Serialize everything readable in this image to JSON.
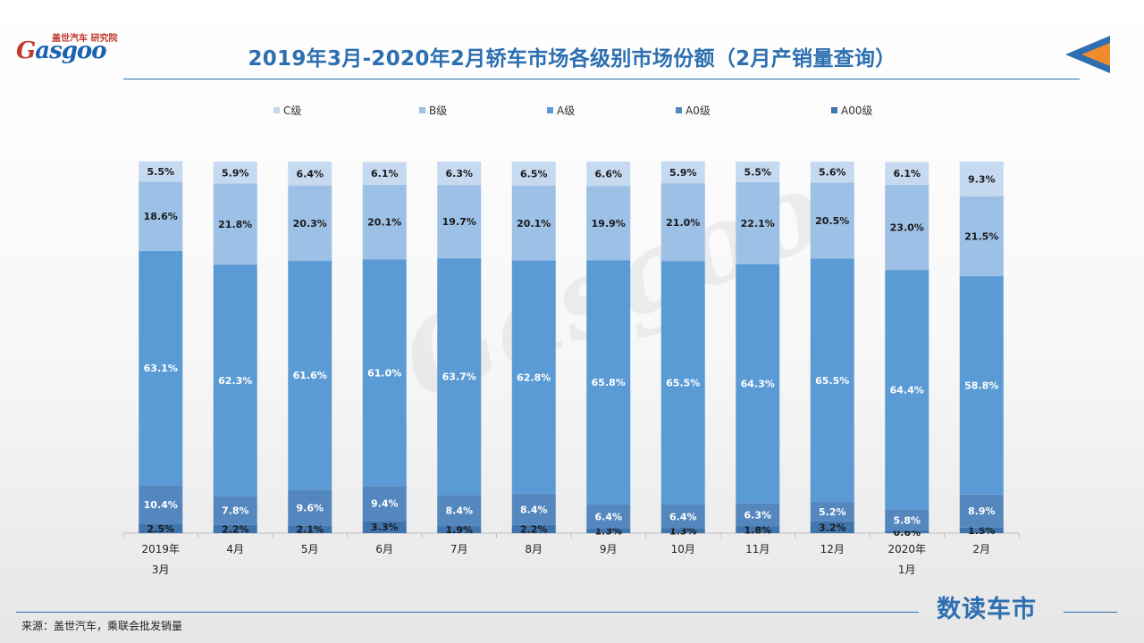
{
  "logo": {
    "top_cn_1": "盖世汽车",
    "top_cn_2": "研究院",
    "g": "G",
    "rest": "asgoo"
  },
  "title": "2019年3月-2020年2月轿车市场各级别市场份额（2月产销量查询）",
  "source": "来源：盖世汽车，乘联会批发销量",
  "brand": "数读车市",
  "watermark": "Gasgoo",
  "colors": {
    "accent": "#2d6fb0",
    "orange": "#f28a2e"
  },
  "chart_data": {
    "type": "bar",
    "stacked": true,
    "percent": true,
    "ylim": [
      0,
      100
    ],
    "legend_position": "top",
    "categories": [
      [
        "2019年",
        "3月"
      ],
      [
        "4月"
      ],
      [
        "5月"
      ],
      [
        "6月"
      ],
      [
        "7月"
      ],
      [
        "8月"
      ],
      [
        "9月"
      ],
      [
        "10月"
      ],
      [
        "11月"
      ],
      [
        "12月"
      ],
      [
        "2020年",
        "1月"
      ],
      [
        "2月"
      ]
    ],
    "series": [
      {
        "name": "A00级",
        "color": "#3f74ad",
        "label_color": "#1a1a1a",
        "values": [
          2.5,
          2.2,
          2.1,
          3.3,
          1.9,
          2.2,
          1.3,
          1.3,
          1.8,
          3.2,
          0.6,
          1.5
        ],
        "labels": [
          "2.5%",
          "2.2%",
          "2.1%",
          "3.3%",
          "1.9%",
          "2.2%",
          "1.3%",
          "1.3%",
          "1.8%",
          "3.2%",
          "0.6%",
          "1.5%"
        ]
      },
      {
        "name": "A0级",
        "color": "#5587bf",
        "label_color": "#ffffff",
        "values": [
          10.4,
          7.8,
          9.6,
          9.4,
          8.4,
          8.4,
          6.4,
          6.4,
          6.3,
          5.2,
          5.8,
          8.9
        ],
        "labels": [
          "10.4%",
          "7.8%",
          "9.6%",
          "9.4%",
          "8.4%",
          "8.4%",
          "6.4%",
          "6.4%",
          "6.3%",
          "5.2%",
          "5.8%",
          "8.9%"
        ]
      },
      {
        "name": "A级",
        "color": "#5b9bd5",
        "label_color": "#ffffff",
        "values": [
          63.1,
          62.3,
          61.6,
          61.0,
          63.7,
          62.8,
          65.8,
          65.5,
          64.3,
          65.5,
          64.4,
          58.8
        ],
        "labels": [
          "63.1%",
          "62.3%",
          "61.6%",
          "61.0%",
          "63.7%",
          "62.8%",
          "65.8%",
          "65.5%",
          "64.3%",
          "65.5%",
          "64.4%",
          "58.8%"
        ]
      },
      {
        "name": "B级",
        "color": "#9dc0e6",
        "label_color": "#1a1a1a",
        "values": [
          18.6,
          21.8,
          20.3,
          20.1,
          19.7,
          20.1,
          19.9,
          21.0,
          22.1,
          20.5,
          23.0,
          21.5
        ],
        "labels": [
          "18.6%",
          "21.8%",
          "20.3%",
          "20.1%",
          "19.7%",
          "20.1%",
          "19.9%",
          "21.0%",
          "22.1%",
          "20.5%",
          "23.0%",
          "21.5%"
        ]
      },
      {
        "name": "C级",
        "color": "#c5d9f0",
        "label_color": "#1a1a1a",
        "values": [
          5.5,
          5.9,
          6.4,
          6.1,
          6.3,
          6.5,
          6.6,
          5.9,
          5.5,
          5.6,
          6.1,
          9.3
        ],
        "labels": [
          "5.5%",
          "5.9%",
          "6.4%",
          "6.1%",
          "6.3%",
          "6.5%",
          "6.6%",
          "5.9%",
          "5.5%",
          "5.6%",
          "6.1%",
          "9.3%"
        ]
      }
    ],
    "legend_order": [
      "C级",
      "B级",
      "A级",
      "A0级",
      "A00级"
    ]
  }
}
